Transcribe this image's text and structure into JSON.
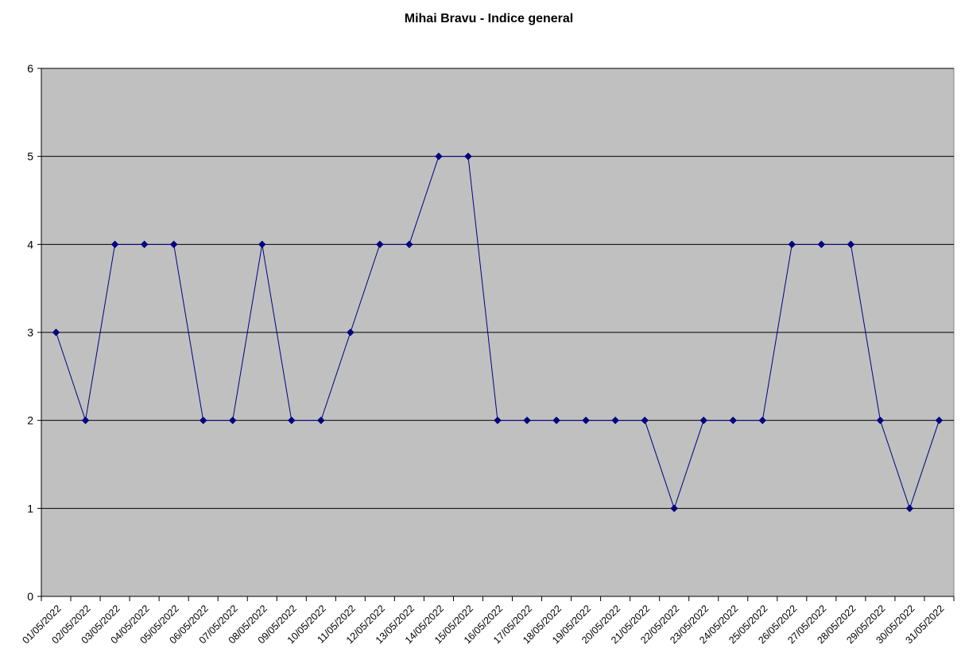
{
  "chart_data": {
    "type": "line",
    "title": "Mihai Bravu - Indice general",
    "xlabel": "",
    "ylabel": "",
    "ylim": [
      0,
      6
    ],
    "yticks": [
      "0",
      "1",
      "2",
      "3",
      "4",
      "5",
      "6"
    ],
    "grid": true,
    "legend": "none",
    "categories": [
      "01/05/2022",
      "02/05/2022",
      "03/05/2022",
      "04/05/2022",
      "05/05/2022",
      "06/05/2022",
      "07/05/2022",
      "08/05/2022",
      "09/05/2022",
      "10/05/2022",
      "11/05/2022",
      "12/05/2022",
      "13/05/2022",
      "14/05/2022",
      "15/05/2022",
      "16/05/2022",
      "17/05/2022",
      "18/05/2022",
      "19/05/2022",
      "20/05/2022",
      "21/05/2022",
      "22/05/2022",
      "23/05/2022",
      "24/05/2022",
      "25/05/2022",
      "26/05/2022",
      "27/05/2022",
      "28/05/2022",
      "29/05/2022",
      "30/05/2022",
      "31/05/2022"
    ],
    "series": [
      {
        "values": [
          3,
          2,
          4,
          4,
          4,
          2,
          2,
          4,
          2,
          2,
          3,
          4,
          4,
          5,
          5,
          2,
          2,
          2,
          2,
          2,
          2,
          1,
          2,
          2,
          2,
          4,
          4,
          4,
          2,
          1,
          2
        ]
      }
    ],
    "colors": {
      "plot_bg": "#c0c0c0",
      "line": "#000080",
      "marker": "#000080",
      "grid": "#000000"
    }
  }
}
